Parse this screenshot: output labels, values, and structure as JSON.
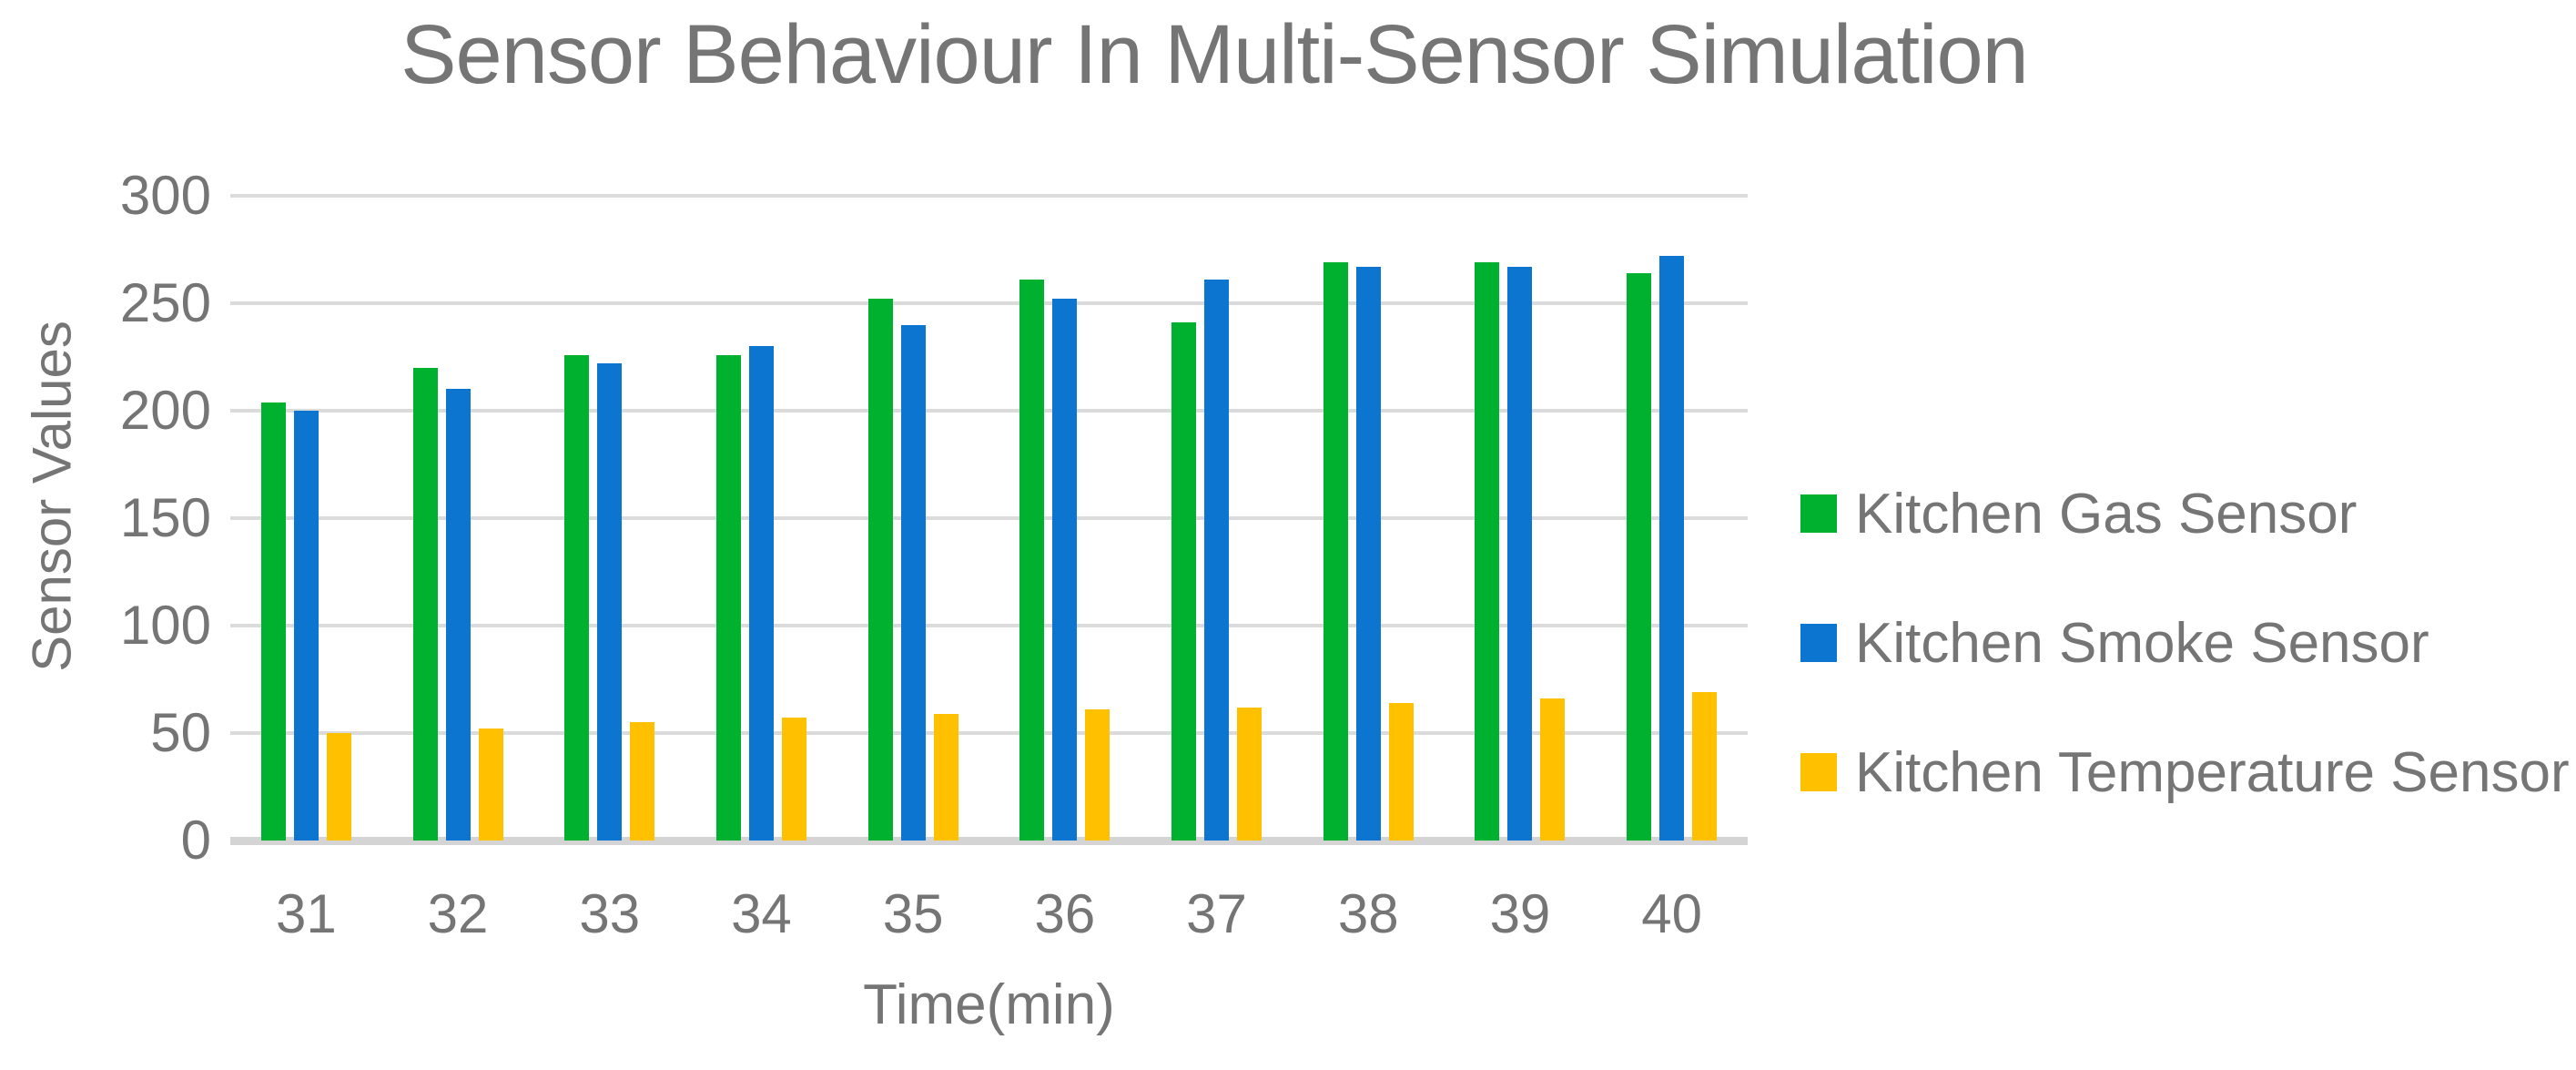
{
  "chart_data": {
    "type": "bar",
    "title": "Sensor Behaviour In Multi-Sensor Simulation",
    "xlabel": "Time(min)",
    "ylabel": "Sensor Values",
    "categories": [
      "31",
      "32",
      "33",
      "34",
      "35",
      "36",
      "37",
      "38",
      "39",
      "40"
    ],
    "series": [
      {
        "name": "Kitchen Gas Sensor",
        "color": "#00b02f",
        "values": [
          204,
          220,
          226,
          226,
          252,
          261,
          241,
          269,
          269,
          264
        ]
      },
      {
        "name": "Kitchen Smoke Sensor",
        "color": "#0b75d0",
        "values": [
          200,
          210,
          222,
          230,
          240,
          252,
          261,
          267,
          267,
          272
        ]
      },
      {
        "name": "Kitchen Temperature Sensor",
        "color": "#ffc000",
        "values": [
          50,
          52,
          55,
          57,
          59,
          61,
          62,
          64,
          66,
          69
        ]
      }
    ],
    "ylim": [
      0,
      300
    ],
    "ytick_step": 50,
    "grid": true,
    "legend_position": "right"
  },
  "colors": {
    "background": "#ffffff",
    "text": "#757575",
    "gridline": "#dbdbdb",
    "axis_line": "#d4d4d4"
  }
}
